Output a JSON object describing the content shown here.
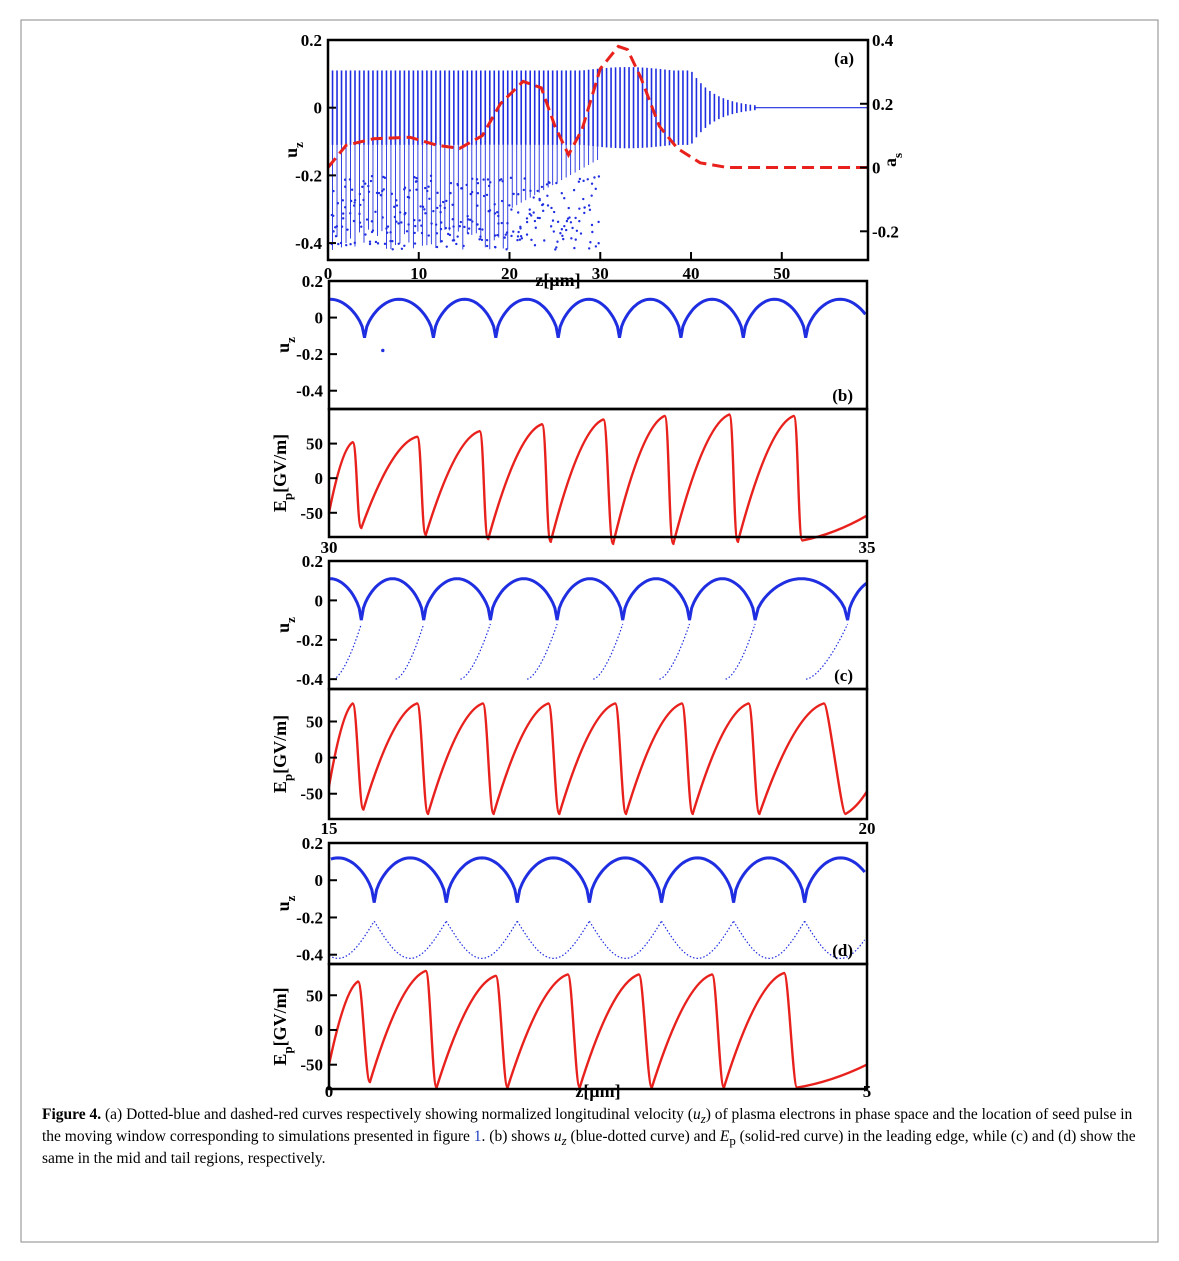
{
  "caption": {
    "label": "Figure 4.",
    "text_a": " (a) Dotted-blue and dashed-red curves respectively showing normalized longitudinal velocity (",
    "uz": "u",
    "uz_sub": "z",
    "text_b": ") of plasma electrons in phase space and the location of seed pulse in the moving window corresponding to simulations presented in figure ",
    "fig_ref": "1",
    "text_c": ". (b) shows ",
    "text_d": " (blue-dotted curve) and ",
    "ep": "E",
    "ep_sub": "p",
    "text_e": " (solid-red curve) in the leading edge, while (c) and (d) show the same in the mid and tail regions, respectively."
  },
  "colors": {
    "blue": "#1f2ee0",
    "red": "#e8211d",
    "ref_link": "#1f3fbf"
  },
  "chart_data": [
    {
      "panel": "(a)",
      "type": "scatter",
      "xlabel": "z[µm]",
      "ylabel": "u",
      "ylabel_sub": "z",
      "y2label": "a",
      "y2label_sub": "s",
      "xlim": [
        0,
        59.5
      ],
      "ylim": [
        -0.45,
        0.2
      ],
      "y2lim": [
        -0.29,
        0.4
      ],
      "xticks": [
        0,
        10,
        20,
        30,
        40,
        50
      ],
      "yticks": [
        -0.4,
        -0.2,
        0,
        0.2
      ],
      "ytick_labels": [
        "-0.4",
        "-0.2",
        "0",
        "0.2"
      ],
      "y2ticks": [
        -0.2,
        0,
        0.2,
        0.4
      ],
      "y2tick_labels": [
        "-0.2",
        "0",
        "0.2",
        "0.4"
      ],
      "series": [
        {
          "type": "scatter",
          "color": "blue",
          "axis": "left",
          "description_points": "oscillation amplitude ~0.11 up to z=40 decaying to 0 by z=47"
        },
        {
          "type": "line",
          "style": "dashed",
          "color": "red",
          "axis": "right",
          "x": [
            0,
            2,
            5,
            9,
            12,
            14.5,
            17,
            19,
            21.5,
            23.5,
            25,
            26.5,
            28,
            30,
            32,
            33,
            34.5,
            36.5,
            38.5,
            41,
            44,
            48,
            59.5
          ],
          "y": [
            0.0,
            0.07,
            0.09,
            0.095,
            0.07,
            0.06,
            0.1,
            0.2,
            0.27,
            0.25,
            0.13,
            0.04,
            0.12,
            0.31,
            0.38,
            0.37,
            0.28,
            0.13,
            0.06,
            0.015,
            0.0,
            0.0,
            0.0
          ]
        }
      ]
    },
    {
      "panel": "(b)",
      "type": "line",
      "x_range_label": [
        "30",
        "35"
      ],
      "xlim": [
        30,
        35
      ],
      "upper": {
        "ylabel": "u",
        "ylabel_sub": "z",
        "ylim": [
          -0.5,
          0.2
        ],
        "yticks": [
          0.2,
          0,
          -0.2,
          -0.4
        ],
        "ytick_labels": [
          "0.2",
          "0",
          "-0.2",
          "-0.4"
        ],
        "trough_x": [
          30.33,
          30.97,
          31.55,
          32.13,
          32.7,
          33.27,
          33.85,
          34.43
        ],
        "peak_value": 0.1,
        "trough_value": -0.11,
        "wake_branches": false
      },
      "lower": {
        "ylabel": "E",
        "ylabel_sub": "p",
        "ylabel_unit": "[GV/m]",
        "ylim": [
          -85,
          100
        ],
        "yticks": [
          50,
          0,
          -50
        ],
        "ytick_labels": [
          "50",
          "0",
          "-50"
        ],
        "peaks": [
          [
            30.22,
            52
          ],
          [
            30.82,
            60
          ],
          [
            31.4,
            68
          ],
          [
            31.98,
            78
          ],
          [
            32.55,
            85
          ],
          [
            33.12,
            90
          ],
          [
            33.72,
            92
          ],
          [
            34.32,
            90
          ]
        ],
        "troughs": [
          [
            30.3,
            -72
          ],
          [
            30.9,
            -82
          ],
          [
            31.48,
            -88
          ],
          [
            32.06,
            -92
          ],
          [
            32.64,
            -95
          ],
          [
            33.2,
            -95
          ],
          [
            33.8,
            -92
          ],
          [
            34.4,
            -90
          ]
        ],
        "start_value": -50
      }
    },
    {
      "panel": "(c)",
      "type": "line",
      "x_range_label": [
        "15",
        "20"
      ],
      "xlim": [
        15,
        20
      ],
      "upper": {
        "ylabel": "u",
        "ylabel_sub": "z",
        "ylim": [
          -0.45,
          0.2
        ],
        "yticks": [
          0.2,
          0,
          -0.2,
          -0.4
        ],
        "ytick_labels": [
          "0.2",
          "0",
          "-0.2",
          "-0.4"
        ],
        "trough_x": [
          15.3,
          15.88,
          16.5,
          17.12,
          17.73,
          18.35,
          18.96,
          19.82
        ],
        "peak_value": 0.11,
        "trough_value": -0.1,
        "wake_branches": "partial"
      },
      "lower": {
        "ylabel": "E",
        "ylabel_sub": "p",
        "ylabel_unit": "[GV/m]",
        "ylim": [
          -85,
          95
        ],
        "yticks": [
          50,
          0,
          -50
        ],
        "ytick_labels": [
          "50",
          "0",
          "-50"
        ],
        "peaks": [
          [
            15.22,
            75
          ],
          [
            15.82,
            75
          ],
          [
            16.43,
            75
          ],
          [
            17.04,
            75
          ],
          [
            17.66,
            75
          ],
          [
            18.28,
            75
          ],
          [
            18.9,
            75
          ],
          [
            19.6,
            75
          ]
        ],
        "troughs": [
          [
            15.32,
            -72
          ],
          [
            15.92,
            -78
          ],
          [
            16.53,
            -78
          ],
          [
            17.14,
            -78
          ],
          [
            17.76,
            -78
          ],
          [
            18.38,
            -78
          ],
          [
            19.0,
            -78
          ],
          [
            19.8,
            -78
          ]
        ],
        "start_value": -40
      }
    },
    {
      "panel": "(d)",
      "type": "line",
      "x_range_label": [
        "0",
        "5"
      ],
      "xlabel": "z[µm]",
      "xlim": [
        0,
        5
      ],
      "upper": {
        "ylabel": "u",
        "ylabel_sub": "z",
        "ylim": [
          -0.45,
          0.2
        ],
        "yticks": [
          0.2,
          0,
          -0.2,
          -0.4
        ],
        "ytick_labels": [
          "0.2",
          "0",
          "-0.2",
          "-0.4"
        ],
        "trough_x": [
          0.42,
          1.09,
          1.75,
          2.42,
          3.09,
          3.76,
          4.42
        ],
        "peak_value": 0.12,
        "trough_value": -0.12,
        "wake_branches": "full"
      },
      "lower": {
        "ylabel": "E",
        "ylabel_sub": "p",
        "ylabel_unit": "[GV/m]",
        "ylim": [
          -85,
          95
        ],
        "yticks": [
          50,
          0,
          -50
        ],
        "ytick_labels": [
          "50",
          "0",
          "-50"
        ],
        "peaks": [
          [
            0.27,
            70
          ],
          [
            0.9,
            85
          ],
          [
            1.55,
            78
          ],
          [
            2.22,
            80
          ],
          [
            2.88,
            80
          ],
          [
            3.56,
            80
          ],
          [
            4.23,
            82
          ]
        ],
        "troughs": [
          [
            0.38,
            -75
          ],
          [
            1.0,
            -83
          ],
          [
            1.66,
            -83
          ],
          [
            2.33,
            -83
          ],
          [
            3.0,
            -83
          ],
          [
            3.67,
            -83
          ],
          [
            4.35,
            -83
          ]
        ],
        "start_value": -50
      }
    }
  ]
}
